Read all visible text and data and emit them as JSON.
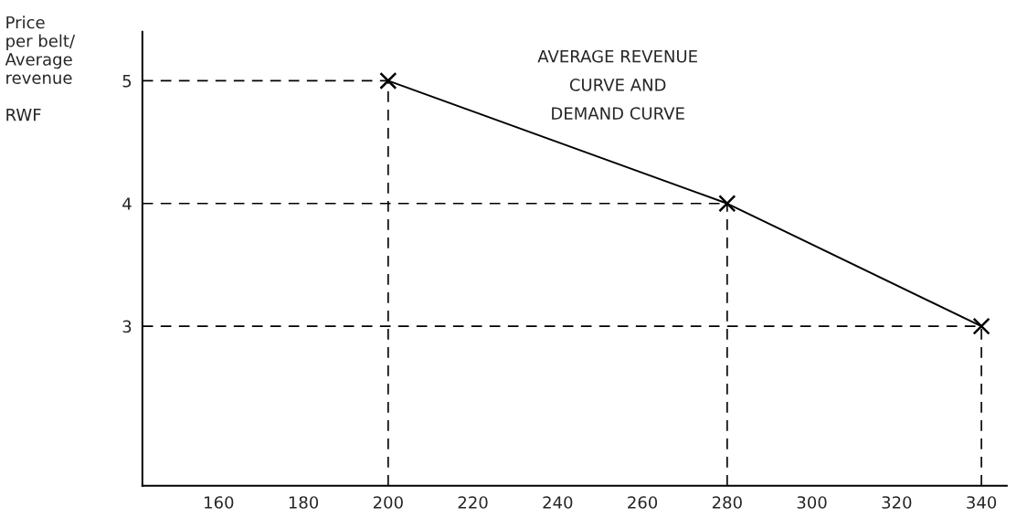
{
  "chart_data": {
    "type": "line",
    "x": [
      200,
      280,
      340
    ],
    "values": [
      5,
      4,
      3
    ],
    "color": "#000000",
    "marker": "cross",
    "line_style": "solid",
    "xlim": [
      142,
      346
    ],
    "ylim": [
      1.7,
      5.4
    ],
    "xticks": [
      160,
      180,
      200,
      220,
      240,
      260,
      280,
      300,
      320,
      340
    ],
    "yticks": [
      3,
      4,
      5
    ],
    "ylabel": "Price\nper belt/\nAverage\nrevenue\n\nRWF",
    "annotations": [
      "AVERAGE REVENUE\nCURVE AND\nDEMAND CURVE"
    ],
    "ref_lines": [
      {
        "axis": "y",
        "value": 5,
        "line_style": "dashed"
      },
      {
        "axis": "y",
        "value": 4,
        "line_style": "dashed"
      },
      {
        "axis": "y",
        "value": 3,
        "line_style": "dashed"
      },
      {
        "axis": "x",
        "value": 200,
        "line_style": "dashed"
      },
      {
        "axis": "x",
        "value": 280,
        "line_style": "dashed"
      },
      {
        "axis": "x",
        "value": 340,
        "line_style": "dashed"
      }
    ],
    "grid": false
  }
}
